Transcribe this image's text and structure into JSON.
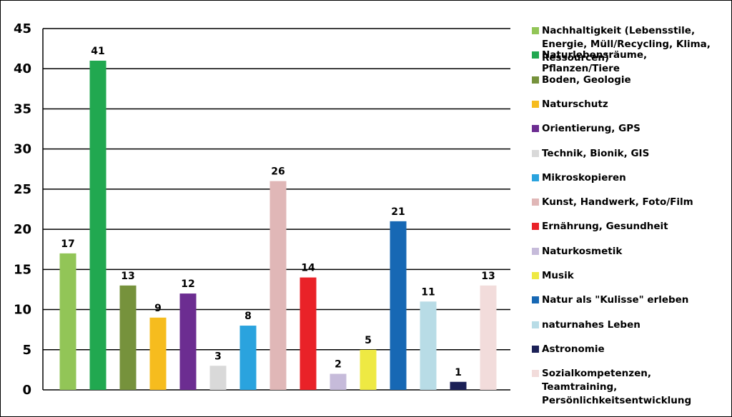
{
  "chart_data": {
    "type": "bar",
    "ylim": [
      0,
      45
    ],
    "yticks": [
      0,
      5,
      10,
      15,
      20,
      25,
      30,
      35,
      40,
      45
    ],
    "grid": true,
    "legend_position": "right",
    "show_data_labels": true,
    "categories": [
      "Nachhaltigkeit (Lebensstile, Energie, Müll/Recycling, Klima, Ressourcen)",
      "Naturlebensräume, Pflanzen/Tiere",
      "Boden, Geologie",
      "Naturschutz",
      "Orientierung,  GPS",
      "Technik, Bionik, GIS",
      "Mikroskopieren",
      "Kunst, Handwerk, Foto/Film",
      "Ernährung, Gesundheit",
      "Naturkosmetik",
      "Musik",
      "Natur als \"Kulisse\" erleben",
      "naturnahes Leben",
      "Astronomie",
      "Sozialkompetenzen, Teamtraining, Persönlichkeitsentwicklung"
    ],
    "values": [
      17,
      41,
      13,
      9,
      12,
      3,
      8,
      26,
      14,
      2,
      5,
      21,
      11,
      1,
      13
    ],
    "colors": [
      "#92c557",
      "#21a850",
      "#76923c",
      "#f6bc1e",
      "#6c2d91",
      "#d9d9d9",
      "#2aa3de",
      "#e0b7b7",
      "#e92228",
      "#c6bbda",
      "#eee943",
      "#1768b4",
      "#b8dce6",
      "#1c2157",
      "#f2dcdb"
    ]
  }
}
